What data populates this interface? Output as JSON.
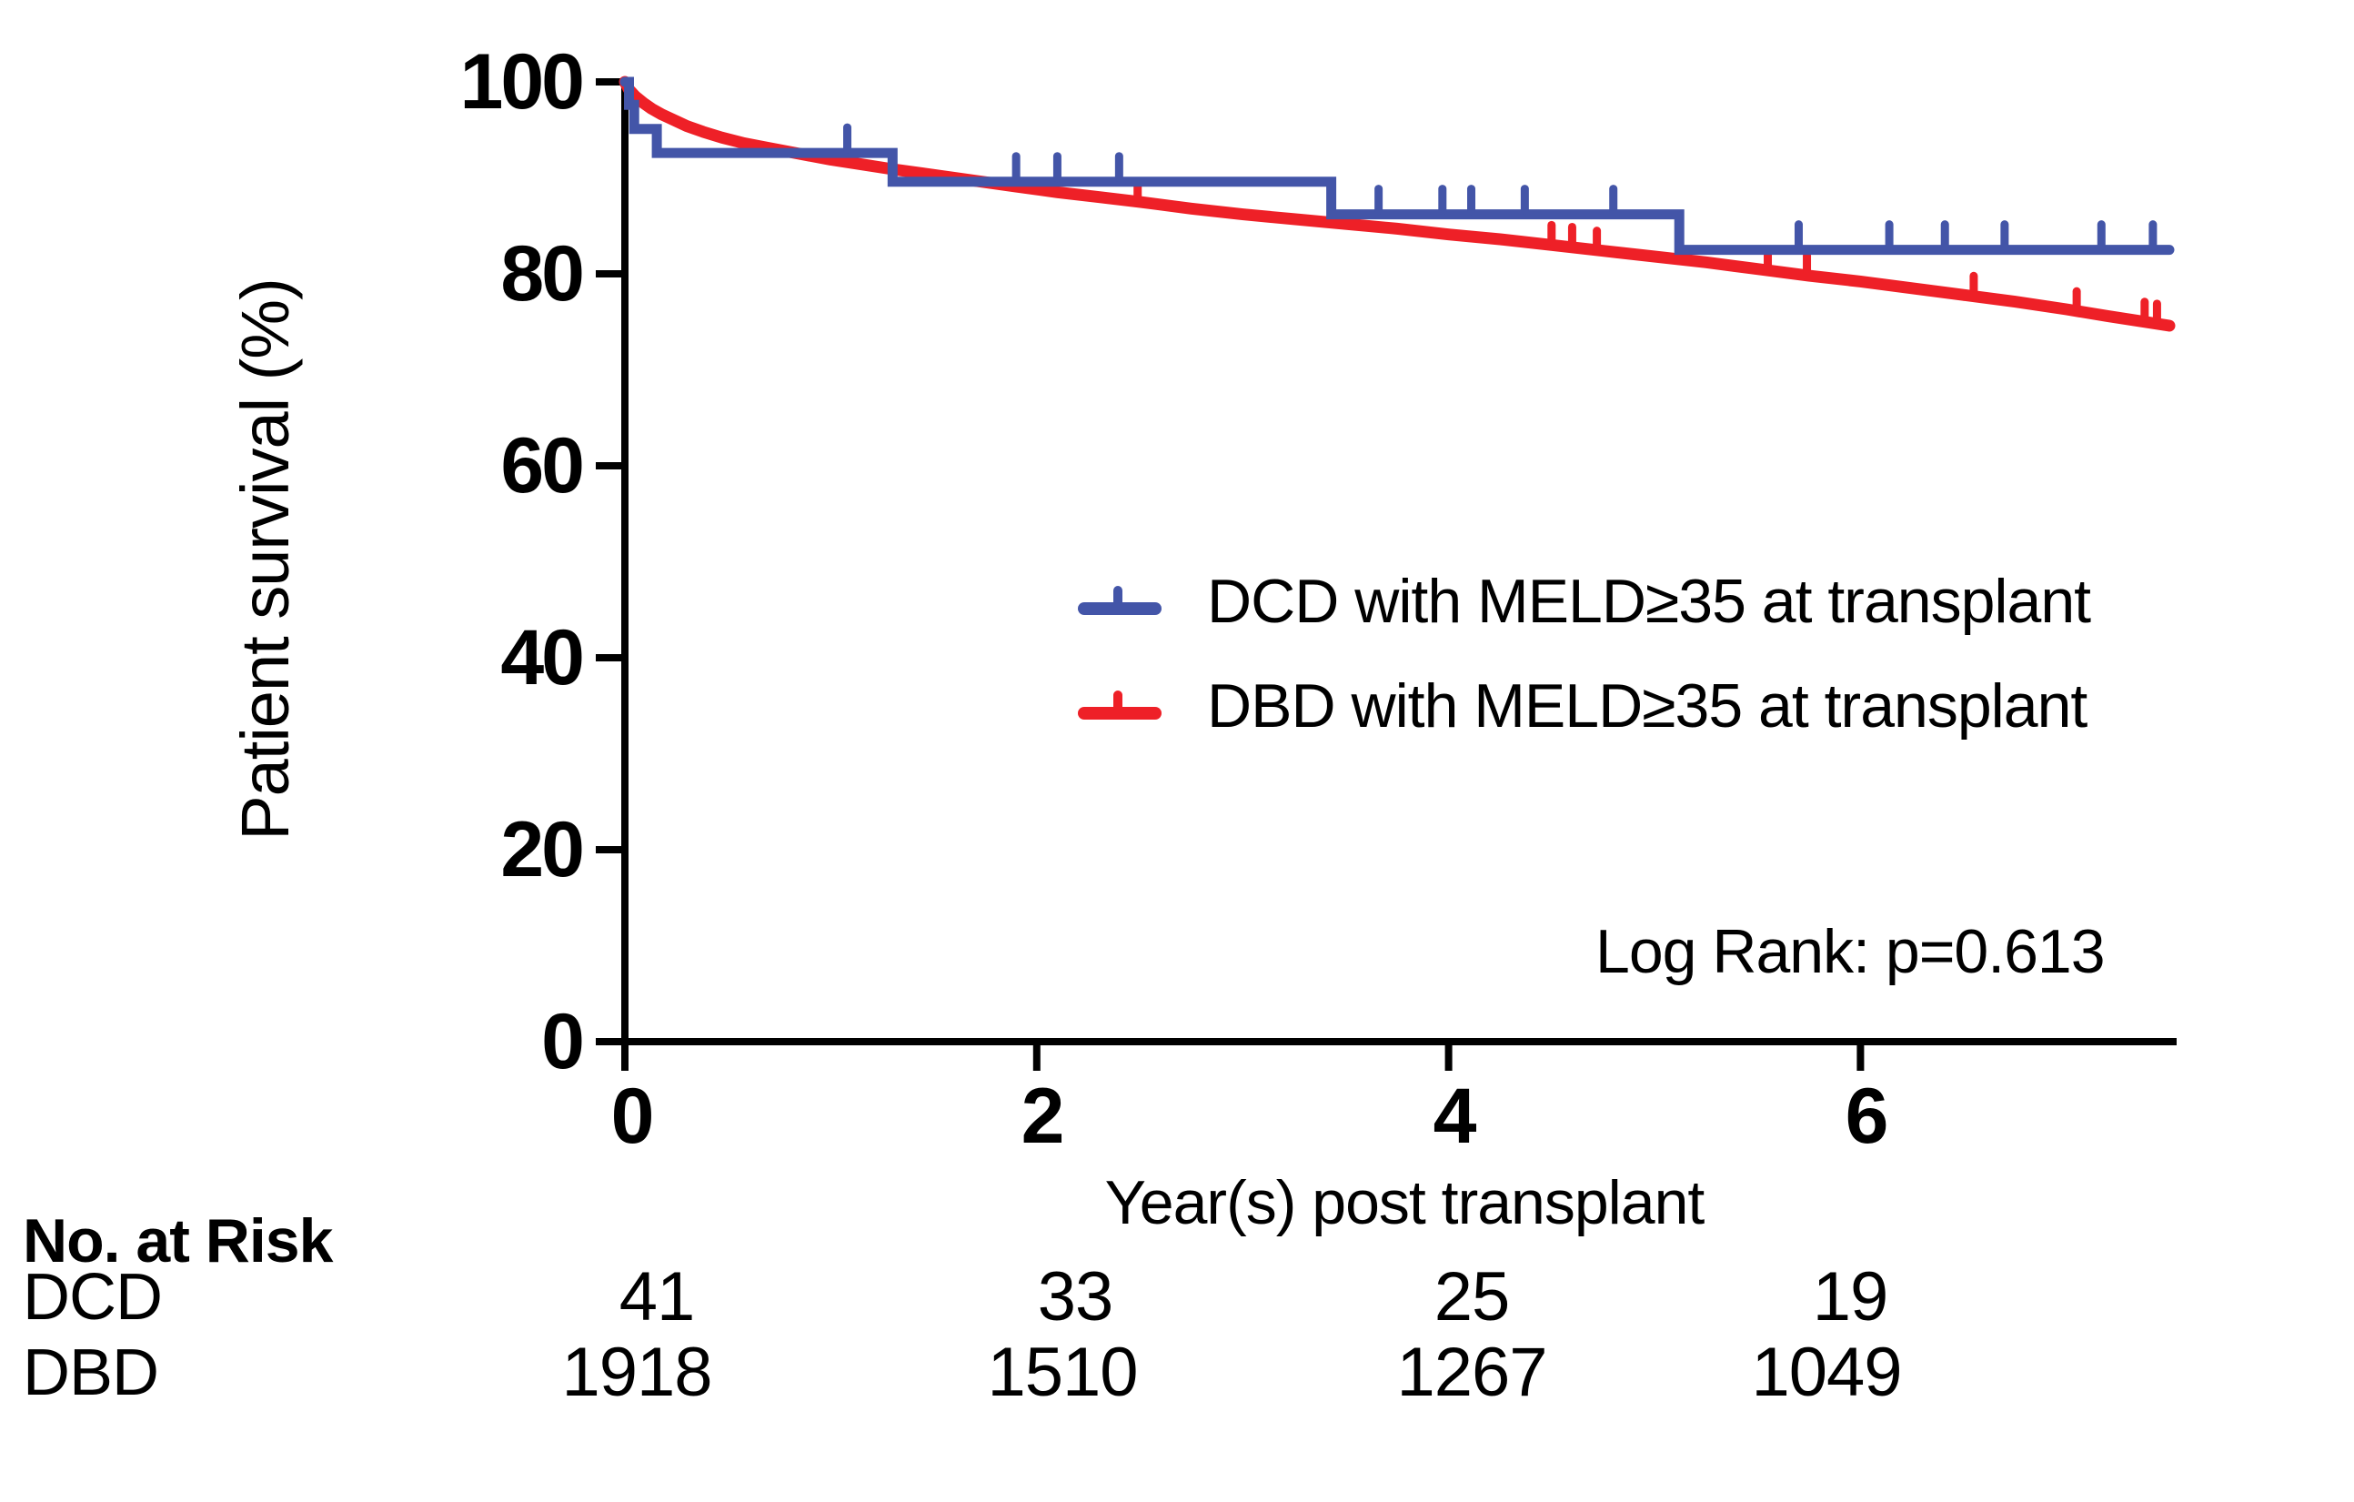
{
  "chart_data": {
    "type": "line",
    "subtype": "kaplan-meier",
    "title": "",
    "xlabel": "Year(s) post transplant",
    "ylabel": "Patient survival (%)",
    "xlim": [
      0,
      7.5
    ],
    "ylim": [
      0,
      100
    ],
    "x_ticks": [
      "0",
      "2",
      "4",
      "6"
    ],
    "x_tick_values": [
      0,
      2,
      4,
      6
    ],
    "y_ticks": [
      "0",
      "20",
      "40",
      "60",
      "80",
      "100"
    ],
    "y_tick_values": [
      0,
      20,
      40,
      60,
      80,
      100
    ],
    "grid": false,
    "legend_position": "center-right",
    "annotation": "Log Rank: p=0.613",
    "series": [
      {
        "name": "DCD with MELD≥35 at transplant",
        "color": "#4355A8",
        "style": "km_step",
        "start": [
          0,
          100
        ],
        "steps": [
          [
            0.02,
            97.6
          ],
          [
            0.045,
            95.1
          ],
          [
            0.155,
            92.6
          ],
          [
            1.3,
            89.6
          ],
          [
            3.43,
            86.2
          ],
          [
            5.12,
            82.5
          ]
        ],
        "end_x": 7.5,
        "censor_marks": [
          [
            1.08,
            92.6
          ],
          [
            1.9,
            89.6
          ],
          [
            2.1,
            89.6
          ],
          [
            2.4,
            89.6
          ],
          [
            3.66,
            86.2
          ],
          [
            3.97,
            86.2
          ],
          [
            4.11,
            86.2
          ],
          [
            4.37,
            86.2
          ],
          [
            4.8,
            86.2
          ],
          [
            5.7,
            82.5
          ],
          [
            6.14,
            82.5
          ],
          [
            6.41,
            82.5
          ],
          [
            6.7,
            82.5
          ],
          [
            7.17,
            82.5
          ],
          [
            7.42,
            82.5
          ]
        ]
      },
      {
        "name": "DBD with MELD≥35 at transplant",
        "color": "#EE2027",
        "style": "line",
        "points": [
          [
            0,
            100
          ],
          [
            0.02,
            99.2
          ],
          [
            0.05,
            98.5
          ],
          [
            0.09,
            97.8
          ],
          [
            0.13,
            97.2
          ],
          [
            0.18,
            96.6
          ],
          [
            0.23,
            96.1
          ],
          [
            0.3,
            95.4
          ],
          [
            0.38,
            94.8
          ],
          [
            0.47,
            94.2
          ],
          [
            0.58,
            93.6
          ],
          [
            0.7,
            93.1
          ],
          [
            0.85,
            92.5
          ],
          [
            1.0,
            91.9
          ],
          [
            1.15,
            91.4
          ],
          [
            1.3,
            90.9
          ],
          [
            1.5,
            90.3
          ],
          [
            1.7,
            89.7
          ],
          [
            1.9,
            89.1
          ],
          [
            2.1,
            88.5
          ],
          [
            2.3,
            88.0
          ],
          [
            2.5,
            87.5
          ],
          [
            2.75,
            86.8
          ],
          [
            3.0,
            86.2
          ],
          [
            3.25,
            85.7
          ],
          [
            3.5,
            85.2
          ],
          [
            3.75,
            84.7
          ],
          [
            4.0,
            84.1
          ],
          [
            4.25,
            83.6
          ],
          [
            4.5,
            83.0
          ],
          [
            4.75,
            82.4
          ],
          [
            5.0,
            81.8
          ],
          [
            5.25,
            81.2
          ],
          [
            5.5,
            80.5
          ],
          [
            5.75,
            79.8
          ],
          [
            6.0,
            79.2
          ],
          [
            6.25,
            78.5
          ],
          [
            6.5,
            77.8
          ],
          [
            6.75,
            77.1
          ],
          [
            7.0,
            76.3
          ],
          [
            7.2,
            75.6
          ],
          [
            7.35,
            75.1
          ],
          [
            7.5,
            74.6
          ]
        ],
        "censor_marks": [
          [
            2.49,
            87.5
          ],
          [
            4.5,
            83.0
          ],
          [
            4.6,
            82.8
          ],
          [
            4.72,
            82.4
          ],
          [
            5.55,
            80.4
          ],
          [
            5.74,
            79.8
          ],
          [
            6.55,
            77.7
          ],
          [
            7.05,
            76.1
          ],
          [
            7.38,
            75.0
          ],
          [
            7.44,
            74.8
          ]
        ]
      }
    ],
    "risk_table": {
      "title": "No. at Risk",
      "time_points": [
        0,
        2,
        4,
        6
      ],
      "rows": [
        {
          "label": "DCD",
          "values": [
            "41",
            "33",
            "25",
            "19"
          ]
        },
        {
          "label": "DBD",
          "values": [
            "1918",
            "1510",
            "1267",
            "1049"
          ]
        }
      ]
    }
  }
}
